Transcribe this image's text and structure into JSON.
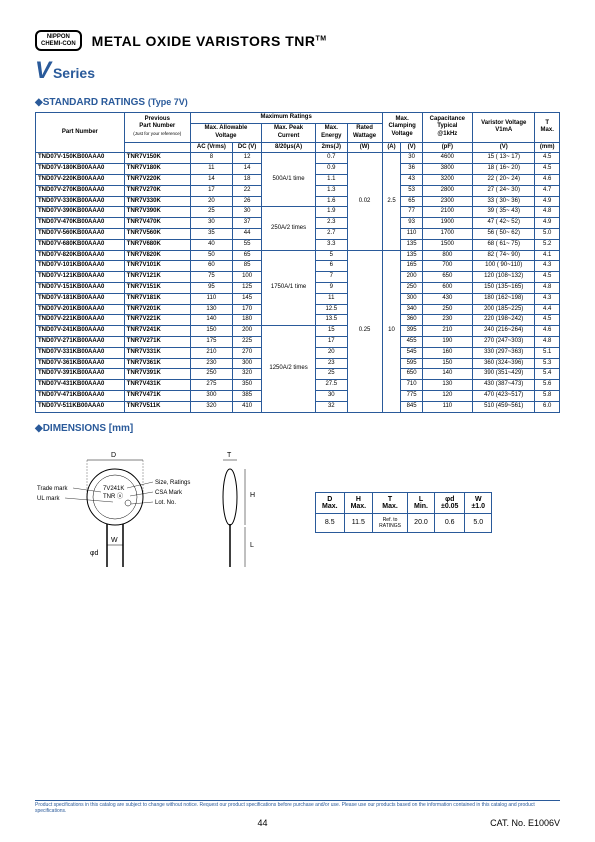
{
  "logo": {
    "line1": "NIPPON",
    "line2": "CHEMI-CON"
  },
  "title": "METAL OXIDE VARISTORS TNR",
  "tm": "TM",
  "series": {
    "v": "V",
    "text": "Series"
  },
  "sections": {
    "ratings": "◆STANDARD RATINGS",
    "ratings_sub": "(Type 7V)",
    "dimensions": "◆DIMENSIONS [mm]"
  },
  "ratings_header": {
    "part": "Part Number",
    "prev_part": "Previous\nPart Number",
    "prev_note": "(Just for your reference)",
    "max_ratings": "Maximum Ratings",
    "max_volt": "Max. Allowable\nVoltage",
    "max_peak": "Max. Peak\nCurrent",
    "max_energy": "Max.\nEnergy",
    "rated_watt": "Rated\nWattage",
    "max_clamp": "Max.\nClamping\nVoltage",
    "cap": "Capacitance\nTypical\n@1kHz",
    "var_volt": "Varistor Voltage\nV1mA",
    "t_max": "T\nMax.",
    "ac": "AC (Vrms)",
    "dc": "DC (V)",
    "peak": "8/20μs(A)",
    "energy": "2ms(J)",
    "w": "(W)",
    "a": "(A)",
    "v_col": "(V)",
    "pf": "(pF)",
    "vv": "(V)",
    "mm": "(mm)"
  },
  "table_rows": [
    {
      "pn": "TND07V-150KB00AAA0",
      "prev": "TNR7V150K",
      "ac": "8",
      "dc": "12",
      "energy": "0.7",
      "clamp_v": "30",
      "cap": "4600",
      "var": "15 ( 13~ 17)",
      "t": "4.5"
    },
    {
      "pn": "TND07V-180KB00AAA0",
      "prev": "TNR7V180K",
      "ac": "11",
      "dc": "14",
      "energy": "0.9",
      "clamp_v": "36",
      "cap": "3800",
      "var": "18 ( 16~ 20)",
      "t": "4.5"
    },
    {
      "pn": "TND07V-220KB00AAA0",
      "prev": "TNR7V220K",
      "ac": "14",
      "dc": "18",
      "energy": "1.1",
      "clamp_v": "43",
      "cap": "3200",
      "var": "22 ( 20~ 24)",
      "t": "4.6"
    },
    {
      "pn": "TND07V-270KB00AAA0",
      "prev": "TNR7V270K",
      "ac": "17",
      "dc": "22",
      "energy": "1.3",
      "clamp_v": "53",
      "cap": "2800",
      "var": "27 ( 24~ 30)",
      "t": "4.7"
    },
    {
      "pn": "TND07V-330KB00AAA0",
      "prev": "TNR7V330K",
      "ac": "20",
      "dc": "26",
      "energy": "1.6",
      "clamp_v": "65",
      "cap": "2300",
      "var": "33 ( 30~ 36)",
      "t": "4.9"
    },
    {
      "pn": "TND07V-390KB00AAA0",
      "prev": "TNR7V390K",
      "ac": "25",
      "dc": "30",
      "energy": "1.9",
      "clamp_v": "77",
      "cap": "2100",
      "var": "39 ( 35~ 43)",
      "t": "4.8"
    },
    {
      "pn": "TND07V-470KB00AAA0",
      "prev": "TNR7V470K",
      "ac": "30",
      "dc": "37",
      "energy": "2.3",
      "clamp_v": "93",
      "cap": "1900",
      "var": "47 ( 42~ 52)",
      "t": "4.9"
    },
    {
      "pn": "TND07V-560KB00AAA0",
      "prev": "TNR7V560K",
      "ac": "35",
      "dc": "44",
      "energy": "2.7",
      "clamp_v": "110",
      "cap": "1700",
      "var": "56 ( 50~ 62)",
      "t": "5.0"
    },
    {
      "pn": "TND07V-680KB00AAA0",
      "prev": "TNR7V680K",
      "ac": "40",
      "dc": "55",
      "energy": "3.3",
      "clamp_v": "135",
      "cap": "1500",
      "var": "68 ( 61~ 75)",
      "t": "5.2"
    },
    {
      "pn": "TND07V-820KB00AAA0",
      "prev": "TNR7V820K",
      "ac": "50",
      "dc": "65",
      "energy": "5",
      "clamp_v": "135",
      "cap": "800",
      "var": "82 ( 74~ 90)",
      "t": "4.1"
    },
    {
      "pn": "TND07V-101KB00AAA0",
      "prev": "TNR7V101K",
      "ac": "60",
      "dc": "85",
      "energy": "6",
      "clamp_v": "165",
      "cap": "700",
      "var": "100 ( 90~110)",
      "t": "4.3"
    },
    {
      "pn": "TND07V-121KB00AAA0",
      "prev": "TNR7V121K",
      "ac": "75",
      "dc": "100",
      "energy": "7",
      "clamp_v": "200",
      "cap": "650",
      "var": "120 (108~132)",
      "t": "4.5"
    },
    {
      "pn": "TND07V-151KB00AAA0",
      "prev": "TNR7V151K",
      "ac": "95",
      "dc": "125",
      "energy": "9",
      "clamp_v": "250",
      "cap": "600",
      "var": "150 (135~165)",
      "t": "4.8"
    },
    {
      "pn": "TND07V-181KB00AAA0",
      "prev": "TNR7V181K",
      "ac": "110",
      "dc": "145",
      "energy": "11",
      "clamp_v": "300",
      "cap": "430",
      "var": "180 (162~198)",
      "t": "4.3"
    },
    {
      "pn": "TND07V-201KB00AAA0",
      "prev": "TNR7V201K",
      "ac": "130",
      "dc": "170",
      "energy": "12.5",
      "clamp_v": "340",
      "cap": "250",
      "var": "200 (185~225)",
      "t": "4.4"
    },
    {
      "pn": "TND07V-221KB00AAA0",
      "prev": "TNR7V221K",
      "ac": "140",
      "dc": "180",
      "energy": "13.5",
      "clamp_v": "360",
      "cap": "230",
      "var": "220 (198~242)",
      "t": "4.5"
    },
    {
      "pn": "TND07V-241KB00AAA0",
      "prev": "TNR7V241K",
      "ac": "150",
      "dc": "200",
      "energy": "15",
      "clamp_v": "395",
      "cap": "210",
      "var": "240 (216~264)",
      "t": "4.6"
    },
    {
      "pn": "TND07V-271KB00AAA0",
      "prev": "TNR7V271K",
      "ac": "175",
      "dc": "225",
      "energy": "17",
      "clamp_v": "455",
      "cap": "190",
      "var": "270 (247~303)",
      "t": "4.8"
    },
    {
      "pn": "TND07V-331KB00AAA0",
      "prev": "TNR7V331K",
      "ac": "210",
      "dc": "270",
      "energy": "20",
      "clamp_v": "545",
      "cap": "160",
      "var": "330 (297~363)",
      "t": "5.1"
    },
    {
      "pn": "TND07V-361KB00AAA0",
      "prev": "TNR7V361K",
      "ac": "230",
      "dc": "300",
      "energy": "23",
      "clamp_v": "595",
      "cap": "150",
      "var": "360 (324~396)",
      "t": "5.3"
    },
    {
      "pn": "TND07V-391KB00AAA0",
      "prev": "TNR7V391K",
      "ac": "250",
      "dc": "320",
      "energy": "25",
      "clamp_v": "650",
      "cap": "140",
      "var": "390 (351~429)",
      "t": "5.4"
    },
    {
      "pn": "TND07V-431KB00AAA0",
      "prev": "TNR7V431K",
      "ac": "275",
      "dc": "350",
      "energy": "27.5",
      "clamp_v": "710",
      "cap": "130",
      "var": "430 (387~473)",
      "t": "5.6"
    },
    {
      "pn": "TND07V-471KB00AAA0",
      "prev": "TNR7V471K",
      "ac": "300",
      "dc": "385",
      "energy": "30",
      "clamp_v": "775",
      "cap": "120",
      "var": "470 (423~517)",
      "t": "5.8"
    },
    {
      "pn": "TND07V-511KB00AAA0",
      "prev": "TNR7V511K",
      "ac": "320",
      "dc": "410",
      "energy": "32",
      "clamp_v": "845",
      "cap": "110",
      "var": "510 (459~561)",
      "t": "6.0"
    }
  ],
  "peak_groups": [
    {
      "label": "500A/1 time",
      "rows": 5
    },
    {
      "label": "250A/2 times",
      "rows": 4
    },
    {
      "label": "1750A/1 time",
      "rows": 7
    },
    {
      "label": "1250A/2 times",
      "rows": 8
    }
  ],
  "watt_groups": [
    {
      "w": "0.02",
      "a": "2.5",
      "rows": 9
    },
    {
      "w": "0.25",
      "a": "10",
      "rows": 15
    }
  ],
  "dim_labels": {
    "trade": "Trade mark",
    "ul": "UL mark",
    "size": "Size, Ratings",
    "csa": "CSA Mark",
    "lot": "Lot. No.",
    "comp_label": "7V241K\nTNR",
    "D": "D",
    "H": "H",
    "T": "T",
    "L": "L",
    "phi": "φd",
    "W": "W"
  },
  "dim_header": {
    "d": "D\nMax.",
    "h": "H\nMax.",
    "t": "T\nMax.",
    "l": "L\nMin.",
    "phi": "φd\n±0.05",
    "w": "W\n±1.0"
  },
  "dim_row": {
    "d": "8.5",
    "h": "11.5",
    "t": "Ref. to\nRATINGS",
    "l": "20.0",
    "phi": "0.6",
    "w": "5.0"
  },
  "footer": {
    "disclaimer": "Product specifications in this catalog are subject to change without notice. Request our product specifications before purchase and/or use. Please use our products based on the information contained in this catalog and product specifications.",
    "page": "44",
    "cat": "CAT. No. E1006V"
  }
}
